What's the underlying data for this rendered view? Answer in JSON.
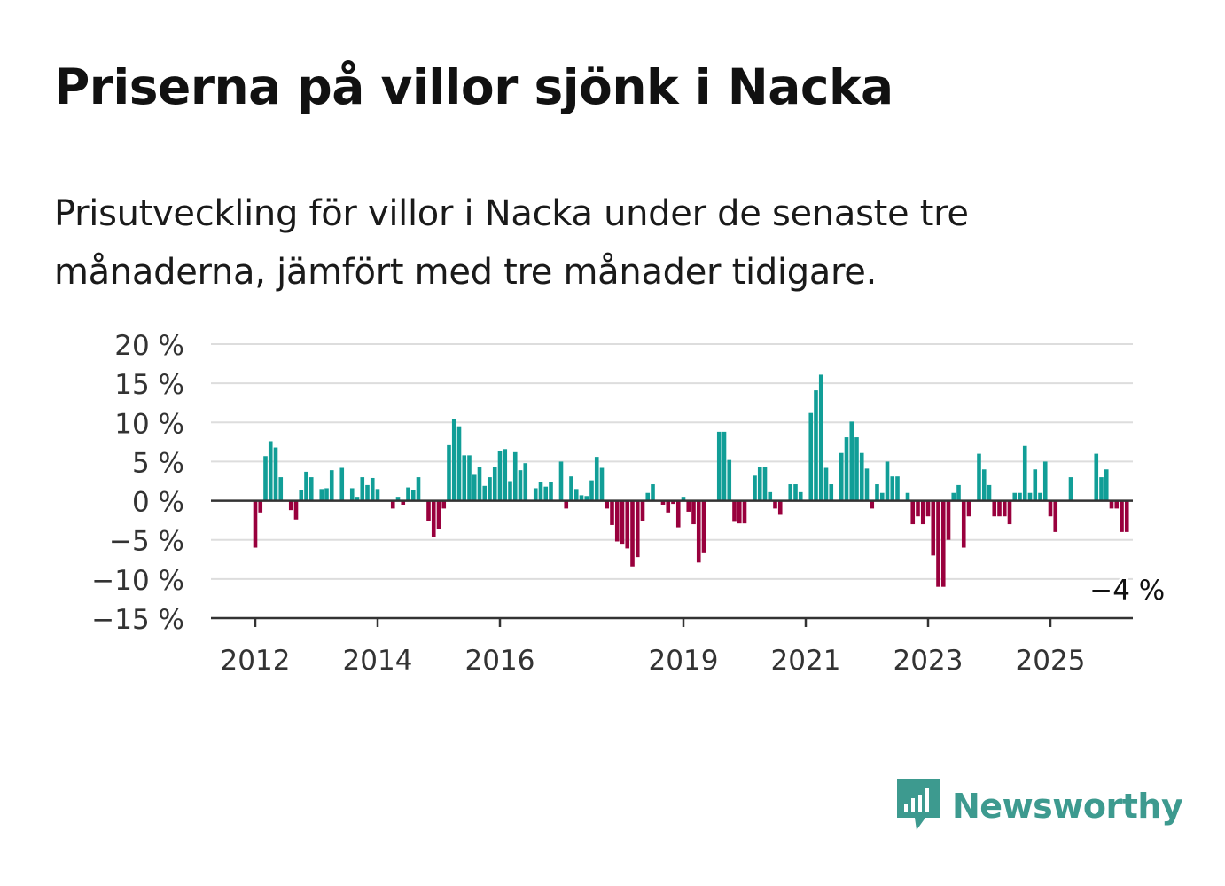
{
  "header": {
    "title": "Priserna på villor sjönk i Nacka",
    "subtitle": "Prisutveckling för villor i Nacka under de senaste tre månaderna, jämfört med tre månader tidigare."
  },
  "brand": {
    "name": "Newsworthy",
    "icon": "newsworthy-logo-icon",
    "color": "#3d9a8f"
  },
  "colors": {
    "positive": "#119e97",
    "negative": "#99003d",
    "grid": "#dddddd",
    "axis": "#333333"
  },
  "chart_data": {
    "type": "bar",
    "title": "",
    "xlabel": "",
    "ylabel": "",
    "y_unit": "%",
    "ylim": [
      -15,
      20
    ],
    "y_ticks": [
      20,
      15,
      10,
      5,
      0,
      -5,
      -10,
      -15
    ],
    "y_tick_labels": [
      "20 %",
      "15 %",
      "10 %",
      "5 %",
      "0 %",
      "−5 %",
      "−10 %",
      "−15 %"
    ],
    "x_ticks": [
      "2012",
      "2014",
      "2016",
      "2019",
      "2021",
      "2023",
      "2025"
    ],
    "grid": true,
    "legend": "none",
    "annotation": {
      "text": "−4 %",
      "target": "last"
    },
    "series": [
      {
        "x_start": "2012-01",
        "frequency": "monthly",
        "values": [
          -6,
          -1.5,
          5.7,
          7.6,
          6.8,
          3,
          0,
          -1.2,
          -2.4,
          1.4,
          3.7,
          3,
          0,
          1.5,
          1.6,
          3.9,
          0,
          4.2,
          0,
          1.6,
          0.5,
          3,
          2,
          2.9,
          1.5,
          0,
          0,
          -1,
          0.5,
          -0.5,
          1.7,
          1.4,
          3,
          0,
          -2.6,
          -4.6,
          -3.6,
          -1,
          7.1,
          10.4,
          9.5,
          5.8,
          5.8,
          3.3,
          4.3,
          1.9,
          3,
          4.3,
          6.4,
          6.6,
          2.5,
          6.2,
          3.9,
          4.8,
          0,
          1.6,
          2.4,
          1.8,
          2.4,
          0,
          5,
          -1,
          3.1,
          1.5,
          0.7,
          0.6,
          2.6,
          5.6,
          4.2,
          -1,
          -3.1,
          -5.2,
          -5.5,
          -6.1,
          -8.4,
          -7.2,
          -2.6,
          1,
          2.1,
          0,
          -0.5,
          -1.5,
          -0.4,
          -3.4,
          0.5,
          -1.4,
          -3,
          -7.9,
          -6.6,
          0,
          0,
          8.8,
          8.8,
          5.2,
          -2.7,
          -2.9,
          -2.9,
          0,
          3.2,
          4.3,
          4.3,
          1.1,
          -1,
          -1.8,
          0,
          2.1,
          2.1,
          1.1,
          0,
          11.2,
          14.1,
          16.1,
          4.2,
          2.1,
          0,
          6.1,
          8.1,
          10.1,
          8.1,
          6.1,
          4.1,
          -1,
          2.1,
          1,
          5,
          3.1,
          3.1,
          0,
          1,
          -3,
          -2,
          -3,
          -2,
          -7,
          -11,
          -11,
          -5,
          1,
          2,
          -6,
          -2,
          0,
          6,
          4,
          2,
          -2,
          -2,
          -2,
          -3,
          1,
          1,
          7,
          1,
          4,
          1,
          5,
          -2,
          -4,
          0,
          0,
          3,
          0,
          0,
          0,
          0,
          6,
          3,
          4,
          -1,
          -1,
          -4,
          -4
        ]
      }
    ]
  }
}
